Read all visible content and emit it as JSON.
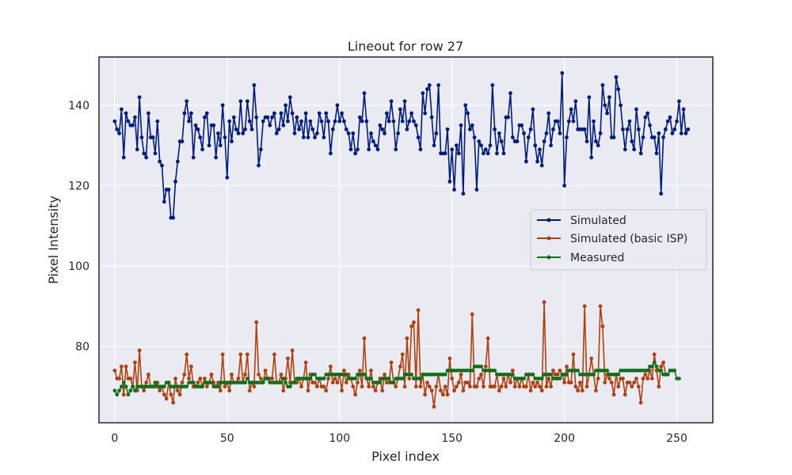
{
  "chart_data": {
    "type": "line",
    "title": "Lineout for row 27",
    "xlabel": "Pixel index",
    "ylabel": "Pixel Intensity",
    "xlim": [
      -7,
      266
    ],
    "ylim": [
      61,
      152
    ],
    "xticks": [
      0,
      50,
      100,
      150,
      200,
      250
    ],
    "yticks": [
      80,
      100,
      120,
      140
    ],
    "grid": true,
    "legend_position": "center-right",
    "series": [
      {
        "name": "Simulated",
        "color": "#001c7f",
        "values": [
          136,
          134,
          133,
          139,
          127,
          138,
          136,
          135,
          135,
          137,
          129,
          142,
          132,
          128,
          127,
          138,
          132,
          132,
          128,
          136,
          126,
          125,
          116,
          119,
          119,
          112,
          112,
          121,
          126,
          131,
          131,
          138,
          141,
          136,
          138,
          127,
          135,
          134,
          132,
          129,
          137,
          138,
          130,
          135,
          135,
          127,
          133,
          130,
          140,
          132,
          122,
          136,
          131,
          137,
          134,
          133,
          141,
          133,
          134,
          141,
          136,
          134,
          145,
          137,
          125,
          129,
          136,
          137,
          137,
          135,
          137,
          138,
          133,
          134,
          138,
          135,
          140,
          136,
          142,
          138,
          133,
          137,
          134,
          136,
          132,
          138,
          132,
          136,
          134,
          132,
          133,
          138,
          136,
          132,
          138,
          136,
          128,
          134,
          136,
          140,
          136,
          138,
          136,
          134,
          133,
          129,
          133,
          128,
          129,
          137,
          136,
          143,
          136,
          129,
          133,
          131,
          130,
          129,
          135,
          134,
          133,
          138,
          136,
          141,
          136,
          129,
          133,
          139,
          136,
          141,
          134,
          136,
          138,
          136,
          135,
          132,
          129,
          143,
          138,
          144,
          145,
          137,
          130,
          133,
          145,
          128,
          128,
          128,
          134,
          121,
          129,
          119,
          130,
          128,
          135,
          118,
          140,
          138,
          134,
          135,
          132,
          119,
          131,
          130,
          128,
          129,
          128,
          130,
          145,
          134,
          128,
          133,
          131,
          128,
          137,
          137,
          143,
          132,
          131,
          131,
          135,
          135,
          133,
          126,
          132,
          134,
          139,
          130,
          126,
          129,
          125,
          131,
          133,
          138,
          130,
          134,
          136,
          136,
          133,
          148,
          120,
          132,
          136,
          139,
          136,
          141,
          134,
          134,
          134,
          134,
          131,
          142,
          127,
          136,
          131,
          130,
          133,
          145,
          140,
          138,
          142,
          132,
          132,
          147,
          144,
          140,
          134,
          129,
          134,
          136,
          131,
          129,
          139,
          134,
          128,
          132,
          137,
          138,
          135,
          132,
          132,
          128,
          133,
          118,
          132,
          134,
          136,
          137,
          133,
          134,
          136,
          141,
          133,
          139,
          133,
          134
        ]
      },
      {
        "name": "Simulated (basic ISP)",
        "color": "#b1400d",
        "values": [
          74,
          72,
          72,
          75,
          68,
          75,
          72,
          72,
          70,
          76,
          69,
          79,
          70,
          69,
          71,
          73,
          70,
          70,
          70,
          71,
          69,
          70,
          68,
          67,
          71,
          68,
          66,
          72,
          69,
          68,
          71,
          73,
          78,
          72,
          75,
          70,
          70,
          71,
          72,
          70,
          72,
          70,
          71,
          73,
          71,
          70,
          71,
          69,
          78,
          70,
          71,
          69,
          73,
          71,
          71,
          72,
          78,
          71,
          73,
          78,
          69,
          71,
          70,
          86,
          73,
          72,
          71,
          74,
          72,
          72,
          72,
          78,
          71,
          71,
          73,
          69,
          72,
          77,
          71,
          79,
          71,
          71,
          72,
          70,
          72,
          76,
          69,
          73,
          71,
          71,
          70,
          72,
          70,
          70,
          69,
          72,
          75,
          71,
          72,
          71,
          73,
          69,
          74,
          71,
          73,
          72,
          70,
          68,
          71,
          74,
          70,
          82,
          72,
          70,
          74,
          70,
          69,
          71,
          72,
          69,
          73,
          71,
          71,
          76,
          71,
          70,
          72,
          75,
          78,
          70,
          82,
          72,
          85,
          86,
          70,
          89,
          70,
          73,
          68,
          71,
          70,
          69,
          65,
          70,
          73,
          69,
          68,
          70,
          68,
          77,
          72,
          69,
          70,
          71,
          73,
          69,
          71,
          71,
          70,
          88,
          70,
          70,
          72,
          73,
          70,
          75,
          82,
          70,
          70,
          70,
          73,
          69,
          70,
          72,
          70,
          73,
          71,
          74,
          70,
          72,
          70,
          72,
          70,
          70,
          73,
          69,
          71,
          70,
          71,
          70,
          69,
          91,
          70,
          72,
          70,
          74,
          73,
          73,
          74,
          73,
          71,
          75,
          71,
          71,
          78,
          70,
          69,
          71,
          69,
          90,
          70,
          73,
          77,
          73,
          69,
          72,
          90,
          85,
          71,
          73,
          72,
          71,
          68,
          73,
          70,
          72,
          72,
          68,
          71,
          71,
          70,
          71,
          72,
          70,
          66,
          72,
          73,
          72,
          74,
          72,
          78,
          74,
          70,
          75,
          76,
          73,
          73,
          74
        ]
      },
      {
        "name": "Measured",
        "color": "#12711c",
        "values": [
          69,
          68,
          69,
          70,
          71,
          70,
          68,
          69,
          70,
          69,
          70,
          70,
          70,
          70,
          70,
          70,
          70,
          70,
          71,
          70,
          70,
          70,
          70,
          71,
          71,
          70,
          70,
          70,
          70,
          70,
          70,
          70,
          70,
          71,
          71,
          71,
          70,
          70,
          70,
          70,
          71,
          71,
          71,
          71,
          70,
          70,
          70,
          71,
          71,
          71,
          71,
          71,
          71,
          71,
          71,
          71,
          71,
          71,
          71,
          72,
          71,
          71,
          71,
          71,
          71,
          71,
          71,
          72,
          72,
          71,
          71,
          71,
          71,
          71,
          71,
          72,
          71,
          70,
          70,
          71,
          71,
          72,
          72,
          72,
          72,
          72,
          72,
          72,
          73,
          73,
          72,
          72,
          72,
          72,
          73,
          73,
          73,
          73,
          73,
          73,
          73,
          73,
          73,
          73,
          72,
          72,
          72,
          72,
          73,
          73,
          73,
          73,
          72,
          72,
          72,
          71,
          71,
          71,
          71,
          72,
          72,
          72,
          72,
          71,
          71,
          72,
          72,
          72,
          72,
          73,
          73,
          73,
          73,
          72,
          72,
          72,
          72,
          73,
          73,
          73,
          73,
          73,
          73,
          73,
          73,
          73,
          73,
          73,
          74,
          74,
          74,
          74,
          74,
          74,
          74,
          74,
          74,
          74,
          74,
          74,
          75,
          75,
          75,
          75,
          74,
          74,
          74,
          74,
          74,
          74,
          73,
          73,
          73,
          73,
          73,
          73,
          73,
          73,
          72,
          72,
          72,
          72,
          72,
          73,
          73,
          73,
          73,
          72,
          72,
          72,
          72,
          73,
          73,
          73,
          73,
          72,
          72,
          72,
          72,
          73,
          73,
          73,
          74,
          74,
          74,
          74,
          74,
          73,
          73,
          73,
          73,
          73,
          73,
          73,
          74,
          74,
          74,
          74,
          74,
          74,
          73,
          73,
          73,
          73,
          73,
          74,
          74,
          74,
          74,
          74,
          74,
          74,
          74,
          74,
          74,
          74,
          74,
          74,
          75,
          75,
          76,
          75,
          74,
          74,
          73,
          73,
          73,
          74,
          74,
          74,
          72,
          72
        ]
      }
    ]
  }
}
